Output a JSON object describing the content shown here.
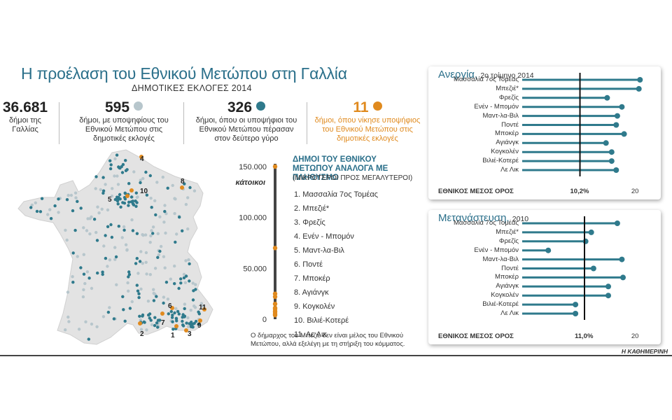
{
  "title": "Η προέλαση του Εθνικού Μετώπου στη Γαλλία",
  "subtitle": "ΔΗΜΟΤΙΚΕΣ ΕΚΛΟΓΕΣ 2014",
  "stats": [
    {
      "number": "36.681",
      "text": "δήμοι της Γαλλίας",
      "dot_color": ""
    },
    {
      "number": "595",
      "text": "δήμοι, με υποψηφίους του Εθνικού Μετώπου στις δημοτικές εκλογές",
      "dot_color": "#b7c6cc"
    },
    {
      "number": "326",
      "text": "δήμοι, όπου οι υποψήφιοι του Εθνικού Μετώπου πέρασαν στον δεύτερο γύρο",
      "dot_color": "#2f7a8c"
    },
    {
      "number": "11",
      "text": "δήμοι, όπου νίκησε υποψήφιος του Εθνικού Μετώπου στις δημοτικές εκλογές",
      "dot_color": "#e08a1e"
    }
  ],
  "colors": {
    "teal": "#2f7a8c",
    "orange": "#e08a1e",
    "light_dot": "#b7c6cc",
    "map_fill": "#e3e3e3",
    "title": "#2a6f8a"
  },
  "map": {
    "labels": [
      "1",
      "2",
      "3",
      "4",
      "5",
      "6",
      "7",
      "8",
      "9",
      "10",
      "11"
    ]
  },
  "ranking": {
    "title": "ΔΗΜΟΙ ΤΟΥ ΕΘΝΙΚΟΥ ΜΕΤΩΠΟΥ ΑΝΑΛΟΓΑ ΜΕ ΠΛΗΘΥΣΜΟ",
    "subtitle": "(ΜΙΚΡΟΤΕΡΟΙ ΠΡΟΣ ΜΕΓΑΛΥΤΕΡΟΙ)",
    "items": [
      "1. Μασσαλία 7ος Τομέας",
      "2. Μπεζιέ*",
      "3. Φρεζίς",
      "4. Ενέν - Μπομόν",
      "5. Μαντ-λα-Βιλ",
      "6. Ποντέ",
      "7. Μποκέρ",
      "8. Αγιάνγκ",
      "9. Κογκολέν",
      "10. Βιλιέ-Κοτερέ",
      "11. Λε Λικ"
    ]
  },
  "footnote": "Ο δήμαρχος του Μπεζιέ δεν είναι μέλος του Εθνικού Μετώπου, αλλά εξελέγη με τη στήριξη του κόμματος.",
  "credit": "Η ΚΑΘΗΜΕΡΙΝΗ",
  "chart_data": [
    {
      "type": "scatter",
      "ylabel": "κάτοικοι",
      "ylim": [
        0,
        150000
      ],
      "yticks": [
        0,
        50000,
        100000,
        150000
      ],
      "ytick_labels": [
        "0",
        "50.000",
        "100.000",
        "150.000"
      ],
      "values": [
        150000,
        70000,
        25000,
        22000,
        15000,
        11000,
        10000,
        8000,
        7000,
        5000,
        4000
      ]
    },
    {
      "type": "bar",
      "title": "Ανεργία,",
      "subtitle": "2ο τρίμηνο 2014",
      "categories": [
        "Μασσαλία 7ος Τομέας",
        "Μπεζιέ*",
        "Φρεζίς",
        "Ενέν - Μπομόν",
        "Μαντ-λα-Βιλ",
        "Ποντέ",
        "Μποκέρ",
        "Αγιάνγκ",
        "Κογκολέν",
        "Βιλιέ-Κοτερέ",
        "Λε Λικ"
      ],
      "values": [
        20.8,
        20.6,
        15.0,
        17.6,
        16.8,
        16.6,
        18.0,
        14.8,
        15.8,
        15.8,
        16.6
      ],
      "reference": 10.2,
      "reference_label": "ΕΘΝΙΚΟΣ ΜΕΣΟΣ ΟΡΟΣ",
      "reference_value_label": "10,2%",
      "tick_label": "20",
      "xlim": [
        0,
        22
      ]
    },
    {
      "type": "bar",
      "title": "Μετανάστευση,",
      "subtitle": "2010",
      "categories": [
        "Μασσαλία 7ος Τομέας",
        "Μπεζιέ*",
        "Φρεζίς",
        "Ενέν - Μπομόν",
        "Μαντ-λα-Βιλ",
        "Ποντέ",
        "Μποκέρ",
        "Αγιάνγκ",
        "Κογκολέν",
        "Βιλιέ-Κοτερέ",
        "Λε Λικ"
      ],
      "values": [
        16.8,
        12.2,
        11.2,
        4.6,
        17.6,
        12.6,
        17.8,
        15.2,
        15.2,
        9.4,
        9.4
      ],
      "reference": 11.0,
      "reference_label": "ΕΘΝΙΚΟΣ ΜΕΣΟΣ ΟΡΟΣ",
      "reference_value_label": "11,0%",
      "tick_label": "20",
      "xlim": [
        0,
        22
      ]
    }
  ]
}
